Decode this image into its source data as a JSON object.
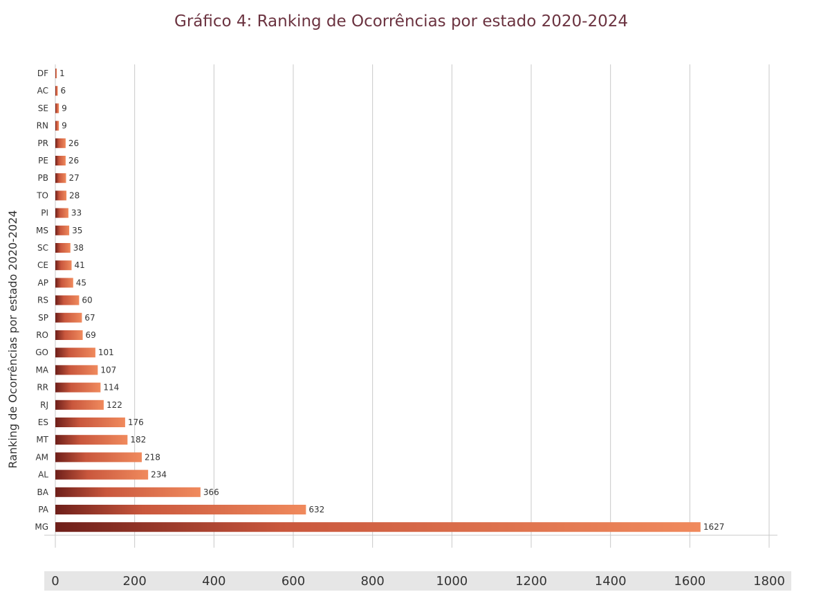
{
  "chart_data": {
    "type": "bar",
    "orientation": "horizontal",
    "title": "Gráfico 4: Ranking de Ocorrências por estado 2020-2024",
    "ylabel": "Ranking de Ocorrências por estado 2020-2024",
    "xlabel": "",
    "categories": [
      "DF",
      "AC",
      "SE",
      "RN",
      "PR",
      "PE",
      "PB",
      "TO",
      "PI",
      "MS",
      "SC",
      "CE",
      "AP",
      "RS",
      "SP",
      "RO",
      "GO",
      "MA",
      "RR",
      "RJ",
      "ES",
      "MT",
      "AM",
      "AL",
      "BA",
      "PA",
      "MG"
    ],
    "values": [
      1,
      6,
      9,
      9,
      26,
      26,
      27,
      28,
      33,
      35,
      38,
      41,
      45,
      60,
      67,
      69,
      101,
      107,
      114,
      122,
      176,
      182,
      218,
      234,
      366,
      632,
      1627
    ],
    "xlim": [
      0,
      1800
    ],
    "xticks": [
      "0",
      "200",
      "400",
      "600",
      "800",
      "1000",
      "1200",
      "1400",
      "1600",
      "1800"
    ],
    "grid": "vertical",
    "data_labels": true,
    "colors": {
      "bar_start": "#6e1f1a",
      "bar_mid": "#c9573d",
      "bar_end": "#f08a5d",
      "grid": "#c8c8c8",
      "axis_band": "#e6e6e6",
      "title": "#6b3340"
    }
  }
}
